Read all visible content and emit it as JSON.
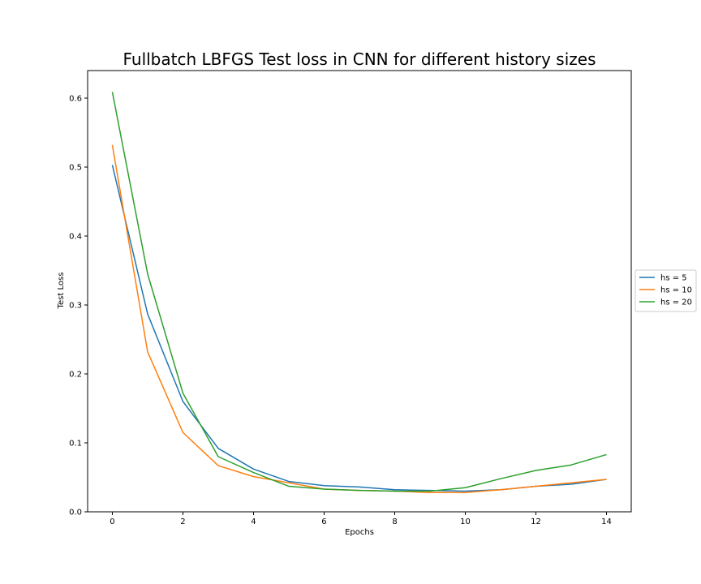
{
  "chart_data": {
    "type": "line",
    "title": "Fullbatch LBFGS Test loss in CNN for different history sizes",
    "xlabel": "Epochs",
    "ylabel": "Test Loss",
    "xlim": [
      -0.7,
      14.7
    ],
    "ylim": [
      0.0,
      0.64
    ],
    "xticks": [
      0,
      2,
      4,
      6,
      8,
      10,
      12,
      14
    ],
    "yticks": [
      0.0,
      0.1,
      0.2,
      0.3,
      0.4,
      0.5,
      0.6
    ],
    "grid": false,
    "legend_position": "center-right-outside",
    "x": [
      0,
      1,
      2,
      3,
      4,
      5,
      6,
      7,
      8,
      9,
      10,
      11,
      12,
      13,
      14
    ],
    "series": [
      {
        "name": "hs = 5",
        "color": "#1f77b4",
        "values": [
          0.503,
          0.287,
          0.16,
          0.092,
          0.062,
          0.044,
          0.038,
          0.036,
          0.032,
          0.031,
          0.03,
          0.032,
          0.037,
          0.04,
          0.047
        ]
      },
      {
        "name": "hs = 10",
        "color": "#ff7f0e",
        "values": [
          0.532,
          0.232,
          0.115,
          0.067,
          0.051,
          0.042,
          0.033,
          0.031,
          0.03,
          0.028,
          0.028,
          0.032,
          0.037,
          0.042,
          0.047
        ]
      },
      {
        "name": "hs = 20",
        "color": "#2ca02c",
        "values": [
          0.609,
          0.345,
          0.172,
          0.08,
          0.057,
          0.037,
          0.033,
          0.031,
          0.03,
          0.03,
          0.035,
          0.048,
          0.06,
          0.068,
          0.083
        ]
      }
    ]
  }
}
